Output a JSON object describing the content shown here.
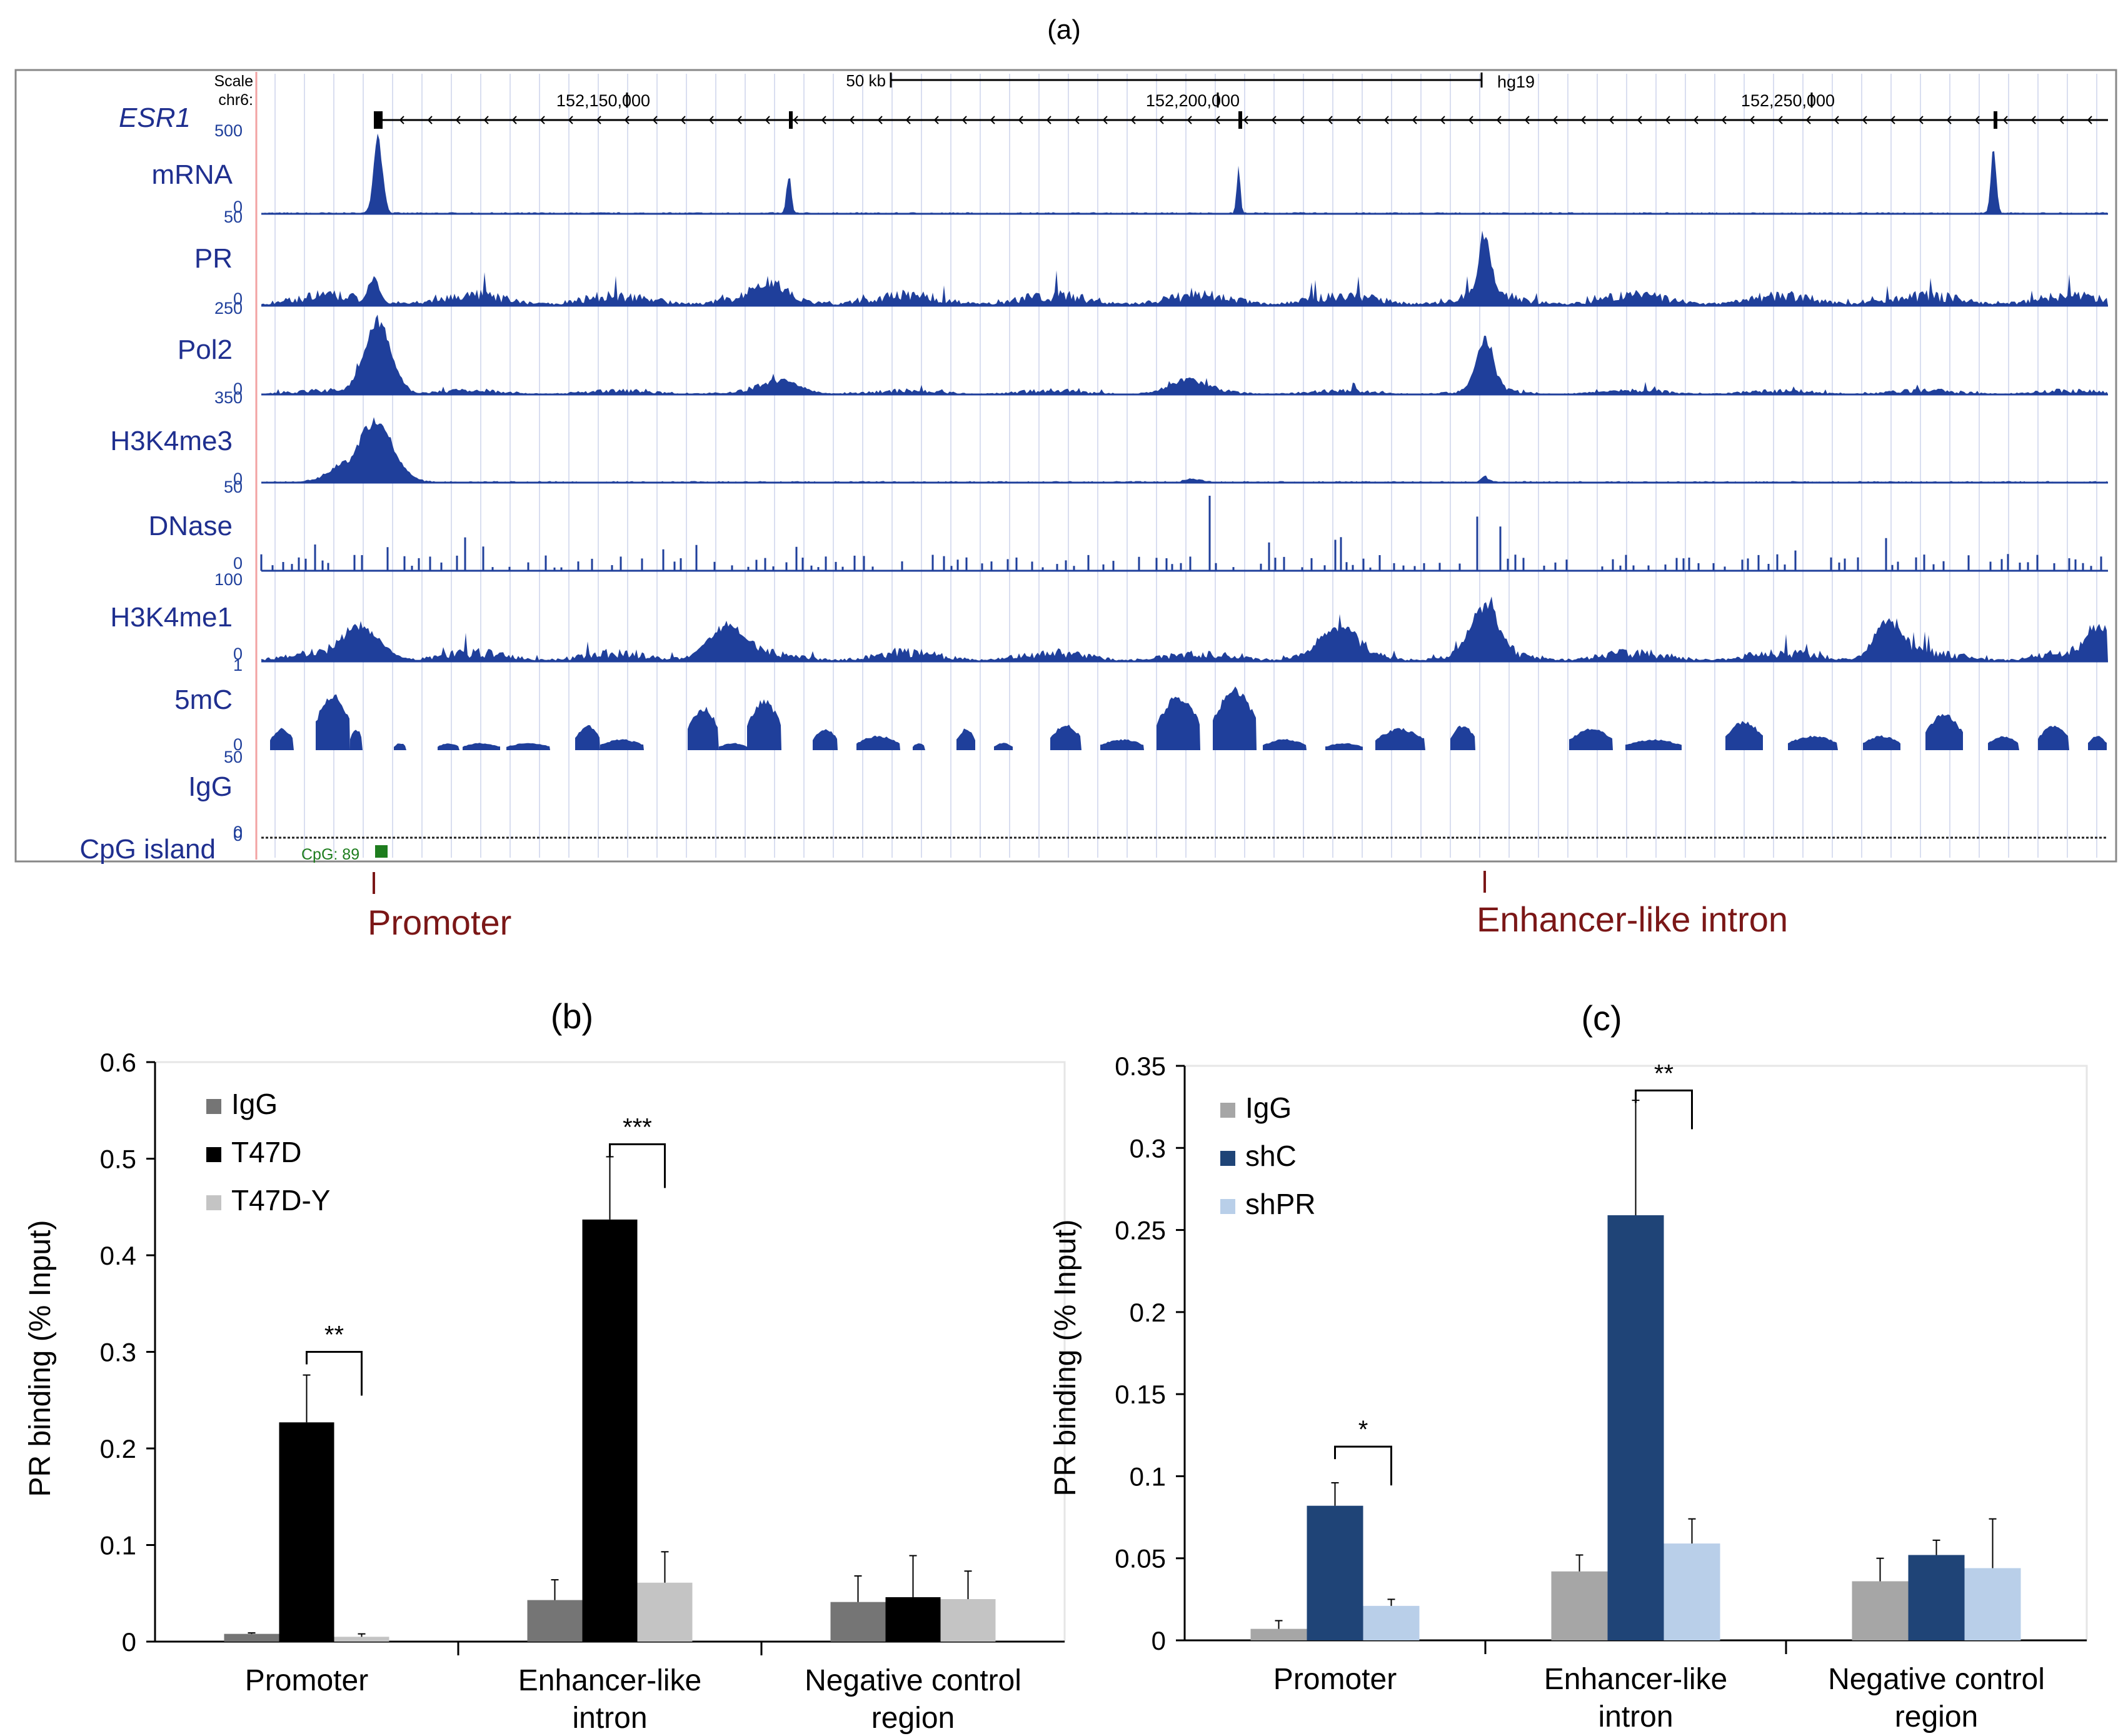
{
  "panel_a": {
    "panel_label": "(a)",
    "gene_label": "ESR1",
    "scale_label": "Scale",
    "chrom_label": "chr6:",
    "scale_bar_label": "50 kb",
    "assembly": "hg19",
    "coord_ticks": [
      "152,150,000",
      "152,200,000",
      "152,250,000"
    ],
    "tracks": [
      {
        "name": "mRNA",
        "max": "500",
        "min": "0",
        "style": "sparse"
      },
      {
        "name": "PR",
        "max": "50",
        "min": "0",
        "style": "dense"
      },
      {
        "name": "Pol2",
        "max": "250",
        "min": "0",
        "style": "dense"
      },
      {
        "name": "H3K4me3",
        "max": "350",
        "min": "0",
        "style": "sparse"
      },
      {
        "name": "DNase",
        "max": "50",
        "min": "0",
        "style": "spikes"
      },
      {
        "name": "H3K4me1",
        "max": "100",
        "min": "0",
        "style": "dense"
      },
      {
        "name": "5mC",
        "max": "1",
        "min": "0",
        "style": "blocks"
      },
      {
        "name": "IgG",
        "max": "50",
        "min": "0",
        "style": "none"
      }
    ],
    "cpg_track_label": "CpG island",
    "cpg_label": "CpG: 89",
    "markers": [
      "Promoter",
      "Enhancer-like intron"
    ],
    "colors": {
      "signal": "#1f3f9b",
      "track_label": "#1f2f8f",
      "marker": "#7b1717",
      "cpg": "#1e7d1e"
    }
  },
  "chart_data": [
    {
      "panel_label": "(b)",
      "type": "bar",
      "title": "",
      "xlabel": "",
      "ylabel": "PR binding (% Input)",
      "ylim": [
        0,
        0.6
      ],
      "yticks": [
        "0",
        "0.1",
        "0.2",
        "0.3",
        "0.4",
        "0.5",
        "0.6"
      ],
      "categories": [
        [
          "Promoter"
        ],
        [
          "Enhancer-like",
          "intron"
        ],
        [
          "Negative control",
          "region"
        ]
      ],
      "legend_position": "top-left",
      "series": [
        {
          "name": "IgG",
          "color": "#757575",
          "values": [
            0.008,
            0.043,
            0.041
          ],
          "errors": [
            0.001,
            0.021,
            0.027
          ]
        },
        {
          "name": "T47D",
          "color": "#000000",
          "values": [
            0.227,
            0.437,
            0.046
          ],
          "errors": [
            0.049,
            0.065,
            0.043
          ]
        },
        {
          "name": "T47D-Y",
          "color": "#c4c4c4",
          "values": [
            0.005,
            0.061,
            0.044
          ],
          "errors": [
            0.003,
            0.032,
            0.029
          ]
        }
      ],
      "significance": [
        {
          "category": 0,
          "from": 1,
          "to": 2,
          "label": "**",
          "level": 0.3
        },
        {
          "category": 1,
          "from": 1,
          "to": 2,
          "label": "***",
          "level": 0.515
        }
      ]
    },
    {
      "panel_label": "(c)",
      "type": "bar",
      "title": "",
      "xlabel": "",
      "ylabel": "PR binding (% Input)",
      "ylim": [
        0,
        0.35
      ],
      "yticks": [
        "0",
        "0.05",
        "0.1",
        "0.15",
        "0.2",
        "0.25",
        "0.3",
        "0.35"
      ],
      "categories": [
        [
          "Promoter"
        ],
        [
          "Enhancer-like",
          "intron"
        ],
        [
          "Negative control",
          "region"
        ]
      ],
      "legend_position": "top-left",
      "series": [
        {
          "name": "IgG",
          "color": "#a6a6a6",
          "values": [
            0.007,
            0.042,
            0.036
          ],
          "errors": [
            0.005,
            0.01,
            0.014
          ]
        },
        {
          "name": "shC",
          "color": "#1f4477",
          "values": [
            0.082,
            0.259,
            0.052
          ],
          "errors": [
            0.014,
            0.07,
            0.009
          ]
        },
        {
          "name": "shPR",
          "color": "#b9cfe9",
          "values": [
            0.021,
            0.059,
            0.044
          ],
          "errors": [
            0.004,
            0.015,
            0.03
          ]
        }
      ],
      "significance": [
        {
          "category": 0,
          "from": 1,
          "to": 2,
          "label": "*",
          "level": 0.118
        },
        {
          "category": 1,
          "from": 1,
          "to": 2,
          "label": "**",
          "level": 0.335
        }
      ]
    }
  ]
}
